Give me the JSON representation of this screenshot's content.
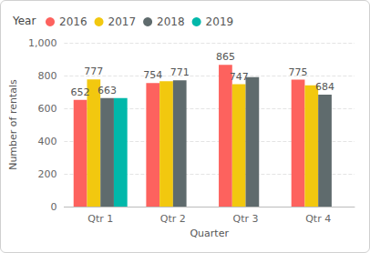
{
  "chart_data": {
    "type": "bar",
    "legend_title": "Year",
    "x_label": "Quarter",
    "y_label": "Number of rentals",
    "categories": [
      "Qtr 1",
      "Qtr 2",
      "Qtr 3",
      "Qtr 4"
    ],
    "series": [
      {
        "name": "2016",
        "color": "#fd625e",
        "values": [
          652,
          754,
          865,
          775
        ],
        "value_labels": [
          "652",
          "754",
          "865",
          "775"
        ]
      },
      {
        "name": "2017",
        "color": "#f2c80f",
        "values": [
          777,
          765,
          747,
          740
        ],
        "value_labels": [
          "777",
          null,
          "747",
          null
        ]
      },
      {
        "name": "2018",
        "color": "#5f6b6d",
        "values": [
          663,
          771,
          790,
          684
        ],
        "value_labels": [
          "663",
          "771",
          null,
          "684"
        ]
      },
      {
        "name": "2019",
        "color": "#01b8aa",
        "values": [
          663,
          null,
          null,
          null
        ],
        "value_labels": [
          null,
          null,
          null,
          null
        ]
      }
    ],
    "ylim": [
      0,
      1000
    ],
    "yticks": [
      0,
      200,
      400,
      600,
      800,
      1000
    ],
    "grid": true,
    "legend": "top-left",
    "data_labels": true
  }
}
